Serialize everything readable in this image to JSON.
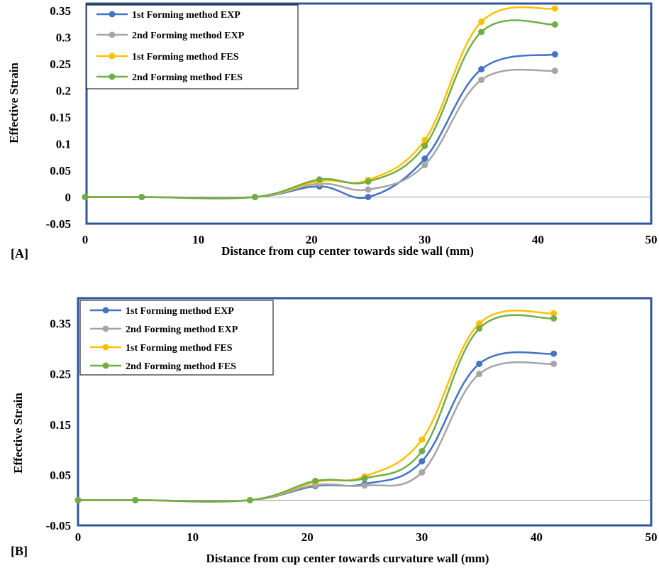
{
  "chart_data": [
    {
      "type": "line",
      "panel_label": "[A]",
      "xlabel": "Distance from cup center towards side wall (mm)",
      "ylabel": "Effective Strain",
      "xlim": [
        0,
        50
      ],
      "ylim": [
        -0.05,
        0.35
      ],
      "xticks": [
        0,
        10,
        20,
        30,
        40,
        50
      ],
      "yticks": [
        -0.05,
        0,
        0.05,
        0.1,
        0.15,
        0.2,
        0.25,
        0.3,
        0.35
      ],
      "ytick_labels": [
        "-0.05",
        "0",
        "0.05",
        "0.1",
        "0.15",
        "0.2",
        "0.25",
        "0.3",
        "0.35"
      ],
      "x": [
        0,
        5,
        15,
        20.7,
        25,
        30,
        35,
        41.5
      ],
      "legend_position": "top-left",
      "series": [
        {
          "name": "1st Forming method EXP",
          "color": "#4472C4",
          "values": [
            0,
            0,
            0,
            0.02,
            0,
            0.072,
            0.24,
            0.268
          ]
        },
        {
          "name": "2nd Forming method EXP",
          "color": "#A5A5A5",
          "values": [
            0,
            0,
            0,
            0.025,
            0.014,
            0.06,
            0.22,
            0.237
          ]
        },
        {
          "name": "1st Forming method FES",
          "color": "#FFC000",
          "values": [
            0,
            0,
            0,
            0.03,
            0.032,
            0.107,
            0.329,
            0.354
          ]
        },
        {
          "name": "2nd  Forming method FES",
          "color": "#70AD47",
          "values": [
            0,
            0,
            0,
            0.033,
            0.029,
            0.096,
            0.31,
            0.324
          ]
        }
      ]
    },
    {
      "type": "line",
      "panel_label": "[B]",
      "xlabel": "Distance from cup center towards curvature wall (mm)",
      "ylabel": "Effective Strain",
      "xlim": [
        0,
        50
      ],
      "ylim": [
        -0.05,
        0.4
      ],
      "xticks": [
        0,
        10,
        20,
        30,
        40,
        50
      ],
      "yticks": [
        -0.05,
        0.05,
        0.15,
        0.25,
        0.35
      ],
      "ytick_labels": [
        "-0.05",
        "0.05",
        "0.15",
        "0.25",
        "0.35"
      ],
      "x": [
        0,
        5,
        15,
        20.7,
        25,
        30,
        35,
        41.5
      ],
      "legend_position": "top-left",
      "series": [
        {
          "name": "1st Forming method EXP",
          "color": "#4472C4",
          "values": [
            0,
            0,
            0,
            0.028,
            0.032,
            0.077,
            0.27,
            0.29
          ]
        },
        {
          "name": "2nd Forming method EXP",
          "color": "#A5A5A5",
          "values": [
            0,
            0,
            0,
            0.03,
            0.029,
            0.055,
            0.25,
            0.27
          ]
        },
        {
          "name": "1st Forming method FES",
          "color": "#FFC000",
          "values": [
            0,
            0,
            0,
            0.036,
            0.047,
            0.12,
            0.35,
            0.37
          ]
        },
        {
          "name": "2nd Forming method FES",
          "color": "#70AD47",
          "values": [
            0,
            0,
            0,
            0.038,
            0.043,
            0.097,
            0.34,
            0.36
          ]
        }
      ]
    }
  ]
}
